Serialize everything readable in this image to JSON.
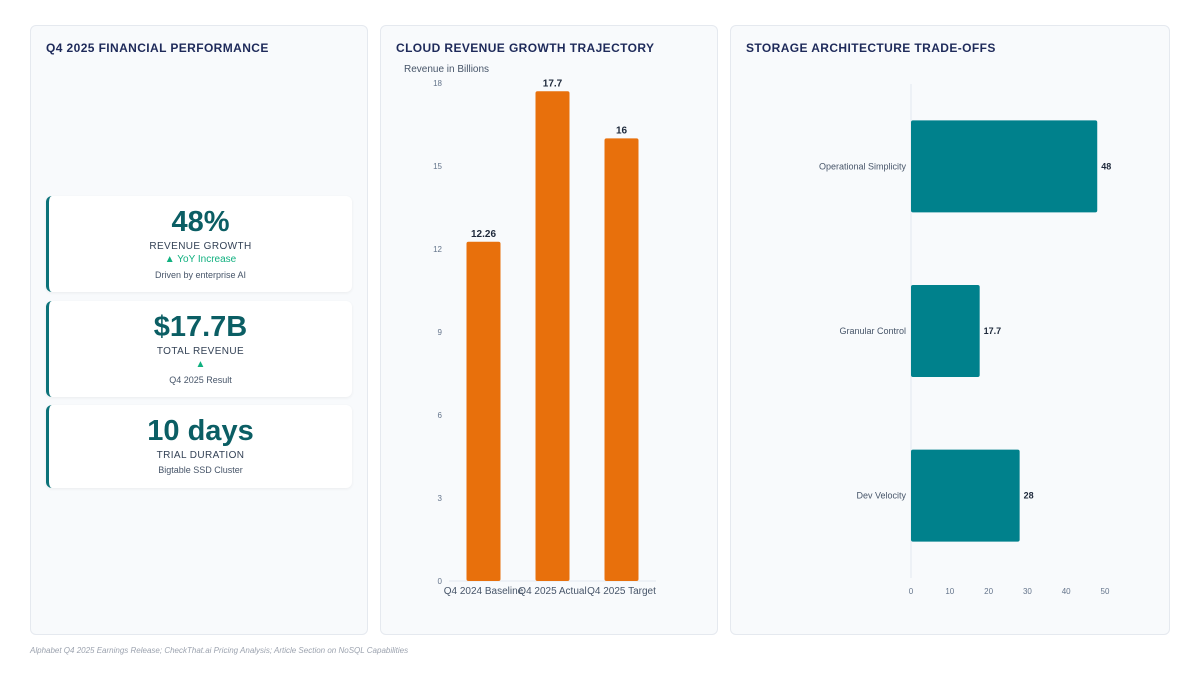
{
  "colors": {
    "accent": "#0b7279",
    "bar_orange": "#e8700c",
    "bar_teal": "#00818c",
    "positive": "#10b07f"
  },
  "panel1": {
    "title": "Q4 2025 FINANCIAL PERFORMANCE",
    "kpis": [
      {
        "value": "48%",
        "label": "REVENUE GROWTH",
        "trend": "▲ YoY Increase",
        "note": "Driven by enterprise AI"
      },
      {
        "value": "$17.7B",
        "label": "TOTAL REVENUE",
        "trend": "▲",
        "note": "Q4 2025 Result"
      },
      {
        "value": "10 days",
        "label": "TRIAL DURATION",
        "trend": "",
        "note": "Bigtable SSD Cluster"
      }
    ]
  },
  "chart_data": [
    {
      "title": "CLOUD REVENUE GROWTH TRAJECTORY",
      "type": "bar",
      "ylabel": "Revenue in Billions",
      "categories": [
        "Q4 2024 Baseline",
        "Q4 2025 Actual",
        "Q4 2025 Target"
      ],
      "values": [
        12.26,
        17.7,
        16
      ],
      "data_labels": [
        "12.26",
        "17.7",
        "16"
      ],
      "ylim": [
        0,
        18
      ],
      "yticks": [
        0,
        3,
        6,
        9,
        12,
        15,
        18
      ],
      "color": "#e8700c",
      "grid": false
    },
    {
      "title": "STORAGE ARCHITECTURE TRADE-OFFS",
      "type": "bar",
      "orientation": "horizontal",
      "categories": [
        "Operational Simplicity",
        "Granular Control",
        "Dev Velocity"
      ],
      "values": [
        48,
        17.7,
        28
      ],
      "data_labels": [
        "48",
        "17.7",
        "28"
      ],
      "xlim": [
        0,
        50
      ],
      "xticks": [
        0,
        10,
        20,
        30,
        40,
        50
      ],
      "color": "#00818c",
      "grid": false
    }
  ],
  "footer": {
    "source": "Alphabet Q4 2025 Earnings Release; CheckThat.ai Pricing Analysis; Article Section on NoSQL Capabilities"
  }
}
